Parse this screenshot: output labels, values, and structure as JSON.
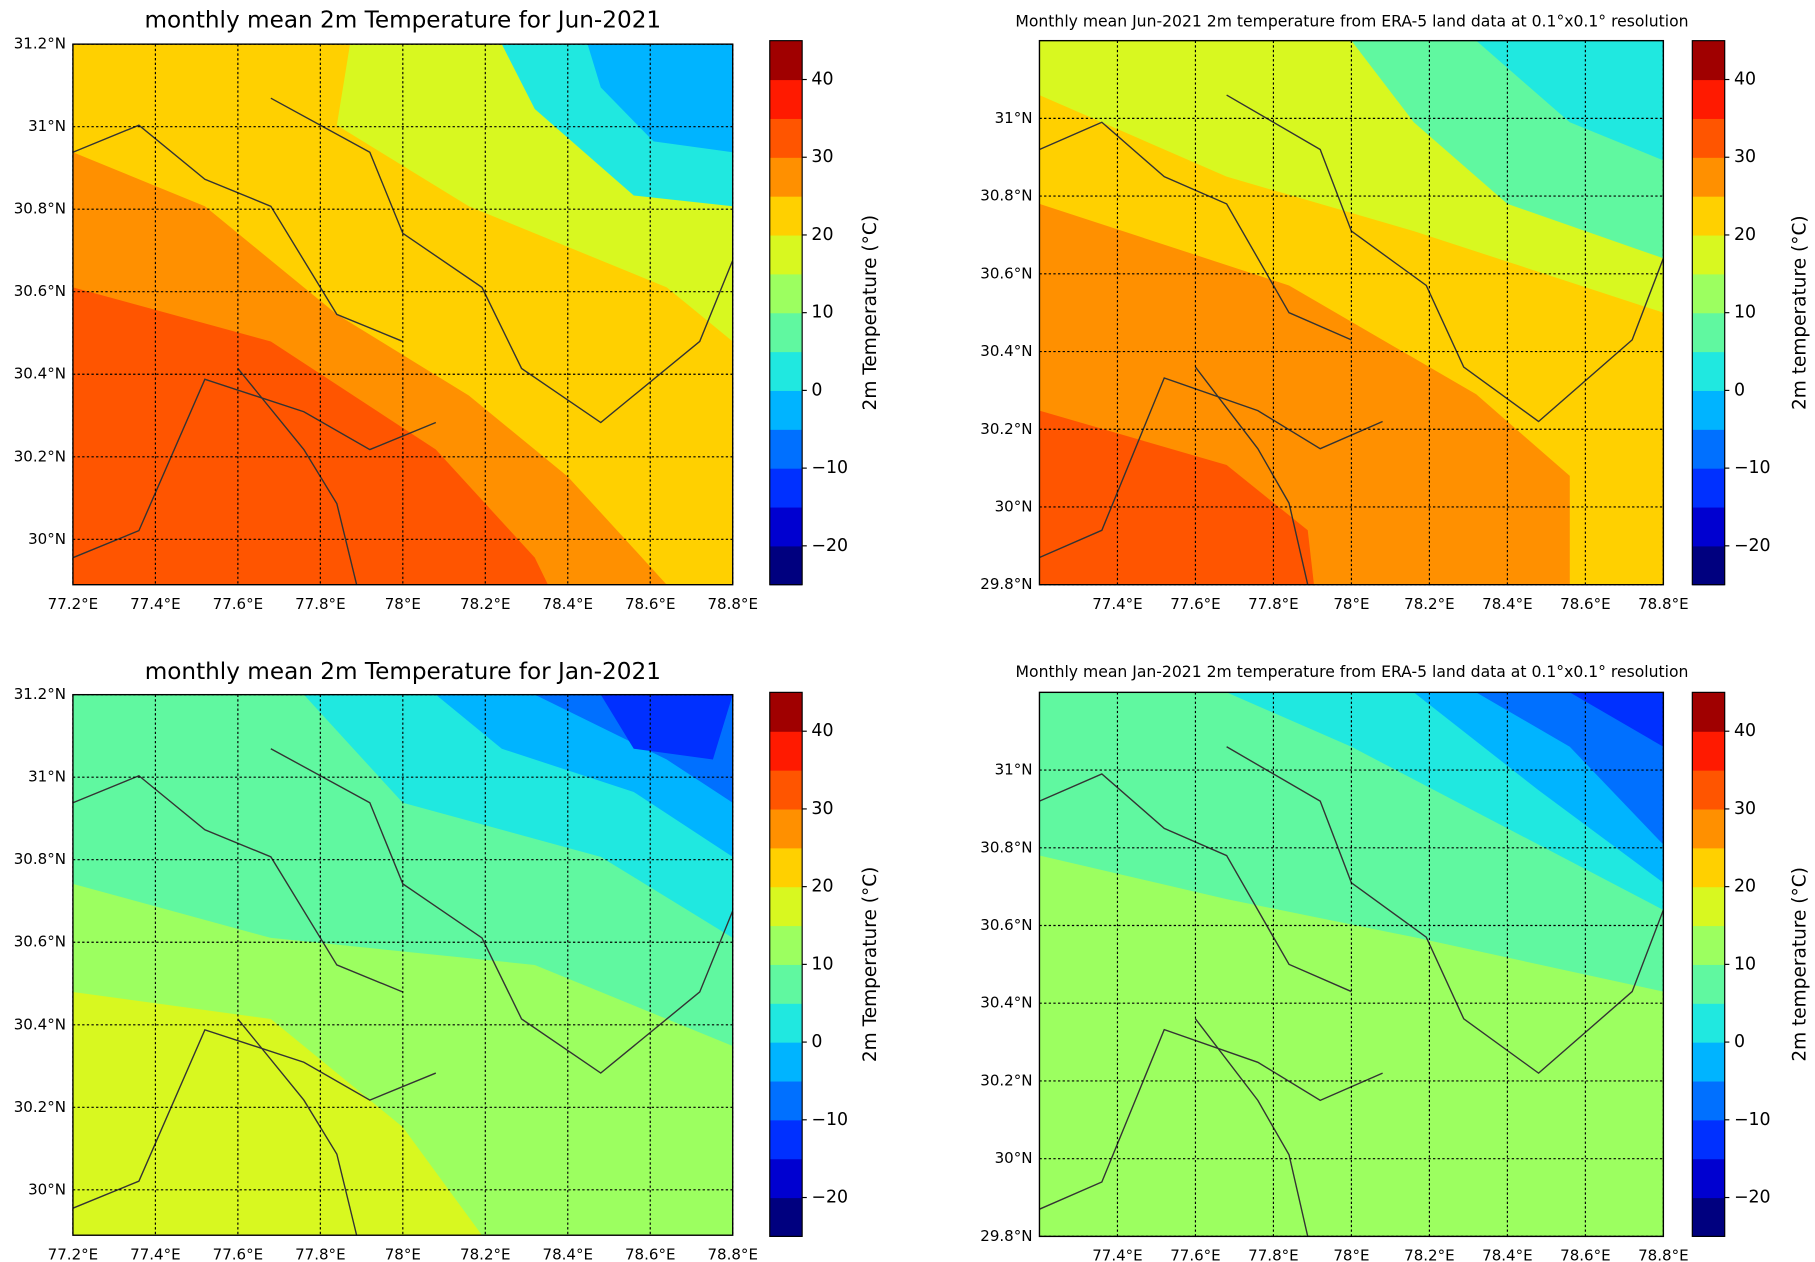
{
  "colormap": [
    "#00007f",
    "#0000d0",
    "#0030ff",
    "#0070ff",
    "#00b4ff",
    "#20e8e0",
    "#60f8a0",
    "#9cff60",
    "#d8f820",
    "#ffd000",
    "#ff9000",
    "#ff5500",
    "#ff1a00",
    "#a00000"
  ],
  "panels": [
    {
      "title": "monthly mean 2m Temperature  for Jun-2021",
      "xlim": [
        77.2,
        78.8
      ],
      "ylim": [
        29.89,
        31.2
      ],
      "xticks": [
        {
          "value": 77.2,
          "label": "77.2°E"
        },
        {
          "value": 77.4,
          "label": "77.4°E"
        },
        {
          "value": 77.6,
          "label": "77.6°E"
        },
        {
          "value": 77.8,
          "label": "77.8°E"
        },
        {
          "value": 78,
          "label": "78°E"
        },
        {
          "value": 78.2,
          "label": "78.2°E"
        },
        {
          "value": 78.4,
          "label": "78.4°E"
        },
        {
          "value": 78.6,
          "label": "78.6°E"
        },
        {
          "value": 78.8,
          "label": "78.8°E"
        }
      ],
      "yticks": [
        {
          "value": 30,
          "label": "30°N"
        },
        {
          "value": 30.2,
          "label": "30.2°N"
        },
        {
          "value": 30.4,
          "label": "30.4°N"
        },
        {
          "value": 30.6,
          "label": "30.6°N"
        },
        {
          "value": 30.8,
          "label": "30.8°N"
        },
        {
          "value": 31,
          "label": "31°N"
        },
        {
          "value": 31.2,
          "label": "31.2°N"
        }
      ],
      "colorbar": {
        "label": "2m Temperature  (°C)",
        "lim": [
          -25,
          45
        ],
        "ticks": [
          {
            "value": -20,
            "label": "−20"
          },
          {
            "value": -10,
            "label": "−10"
          },
          0,
          10,
          20,
          30,
          40
        ]
      }
    },
    {
      "title": "Monthly mean Jun-2021 2m temperature from ERA-5 land data at 0.1°x0.1° resolution",
      "xlim": [
        77.2,
        78.8
      ],
      "ylim": [
        29.8,
        31.2
      ],
      "xticks": [
        {
          "value": 77.4,
          "label": "77.4°E"
        },
        {
          "value": 77.6,
          "label": "77.6°E"
        },
        {
          "value": 77.8,
          "label": "77.8°E"
        },
        {
          "value": 78,
          "label": "78°E"
        },
        {
          "value": 78.2,
          "label": "78.2°E"
        },
        {
          "value": 78.4,
          "label": "78.4°E"
        },
        {
          "value": 78.6,
          "label": "78.6°E"
        },
        {
          "value": 78.8,
          "label": "78.8°E"
        }
      ],
      "yticks": [
        {
          "value": 29.8,
          "label": "29.8°N"
        },
        {
          "value": 30,
          "label": "30°N"
        },
        {
          "value": 30.2,
          "label": "30.2°N"
        },
        {
          "value": 30.4,
          "label": "30.4°N"
        },
        {
          "value": 30.6,
          "label": "30.6°N"
        },
        {
          "value": 30.8,
          "label": "30.8°N"
        },
        {
          "value": 31,
          "label": "31°N"
        }
      ],
      "colorbar": {
        "label": "2m temperature (°C)",
        "lim": [
          -25,
          45
        ],
        "ticks": [
          {
            "value": -20,
            "label": "−20"
          },
          {
            "value": -10,
            "label": "−10"
          },
          0,
          10,
          20,
          30,
          40
        ]
      }
    },
    {
      "title": "monthly mean 2m Temperature  for Jan-2021",
      "xlim": [
        77.2,
        78.8
      ],
      "ylim": [
        29.89,
        31.2
      ],
      "xticks": [
        {
          "value": 77.2,
          "label": "77.2°E"
        },
        {
          "value": 77.4,
          "label": "77.4°E"
        },
        {
          "value": 77.6,
          "label": "77.6°E"
        },
        {
          "value": 77.8,
          "label": "77.8°E"
        },
        {
          "value": 78,
          "label": "78°E"
        },
        {
          "value": 78.2,
          "label": "78.2°E"
        },
        {
          "value": 78.4,
          "label": "78.4°E"
        },
        {
          "value": 78.6,
          "label": "78.6°E"
        },
        {
          "value": 78.8,
          "label": "78.8°E"
        }
      ],
      "yticks": [
        {
          "value": 30,
          "label": "30°N"
        },
        {
          "value": 30.2,
          "label": "30.2°N"
        },
        {
          "value": 30.4,
          "label": "30.4°N"
        },
        {
          "value": 30.6,
          "label": "30.6°N"
        },
        {
          "value": 30.8,
          "label": "30.8°N"
        },
        {
          "value": 31,
          "label": "31°N"
        },
        {
          "value": 31.2,
          "label": "31.2°N"
        }
      ],
      "colorbar": {
        "label": "2m Temperature  (°C)",
        "lim": [
          -25,
          45
        ],
        "ticks": [
          {
            "value": -20,
            "label": "−20"
          },
          {
            "value": -10,
            "label": "−10"
          },
          0,
          10,
          20,
          30,
          40
        ]
      }
    },
    {
      "title": "Monthly mean Jan-2021 2m temperature from ERA-5 land data at 0.1°x0.1° resolution",
      "xlim": [
        77.2,
        78.8
      ],
      "ylim": [
        29.8,
        31.2
      ],
      "xticks": [
        {
          "value": 77.4,
          "label": "77.4°E"
        },
        {
          "value": 77.6,
          "label": "77.6°E"
        },
        {
          "value": 77.8,
          "label": "77.8°E"
        },
        {
          "value": 78,
          "label": "78°E"
        },
        {
          "value": 78.2,
          "label": "78.2°E"
        },
        {
          "value": 78.4,
          "label": "78.4°E"
        },
        {
          "value": 78.6,
          "label": "78.6°E"
        },
        {
          "value": 78.8,
          "label": "78.8°E"
        }
      ],
      "yticks": [
        {
          "value": 29.8,
          "label": "29.8°N"
        },
        {
          "value": 30,
          "label": "30°N"
        },
        {
          "value": 30.2,
          "label": "30.2°N"
        },
        {
          "value": 30.4,
          "label": "30.4°N"
        },
        {
          "value": 30.6,
          "label": "30.6°N"
        },
        {
          "value": 30.8,
          "label": "30.8°N"
        },
        {
          "value": 31,
          "label": "31°N"
        }
      ],
      "colorbar": {
        "label": "2m temperature (°C)",
        "lim": [
          -25,
          45
        ],
        "ticks": [
          {
            "value": -20,
            "label": "−20"
          },
          {
            "value": -10,
            "label": "−10"
          },
          0,
          10,
          20,
          30,
          40
        ]
      }
    }
  ]
}
